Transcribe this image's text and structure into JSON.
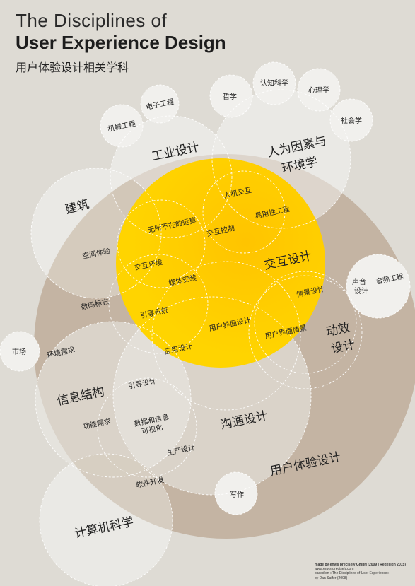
{
  "title": {
    "line1": "The Disciplines of",
    "line2": "User Experience Design",
    "line3": "用户体验设计相关学科"
  },
  "colors": {
    "background": "#dedbd4",
    "ux_circle": "#c4b4a3",
    "interaction_circle": "#ffd200",
    "interaction_highlight": "#ffc400",
    "light_circle": "#f0efec",
    "dashed_outline": "#ffffff"
  },
  "labels": {
    "disciplines": [
      "电子工程",
      "机械工程",
      "哲学",
      "认知科学",
      "心理学",
      "社会学",
      "工业设计",
      "人为因素与",
      "环境学",
      "建筑",
      "人机交互",
      "易用性工程",
      "无所不在的运算",
      "交互控制",
      "交互设计",
      "空间体验",
      "交互环境",
      "媒体安装",
      "数码标志",
      "引导系统",
      "用户界面设计",
      "情景设计",
      "声音",
      "设计",
      "音频工程",
      "动效",
      "设计",
      "市场",
      "环境需求",
      "应用设计",
      "用户界面情景",
      "信息结构",
      "引导设计",
      "沟通设计",
      "功能需求",
      "数据和信息",
      "可视化",
      "生产设计",
      "用户体验设计",
      "软件开发",
      "写作",
      "计算机科学"
    ]
  },
  "credits": {
    "line1": "made by envis precisely GmbH (2009 | Redesign 2015)",
    "line2": "www.envis-precisely.com",
    "line3": "based on »The Disciplines of User Experience«",
    "line4": "by Dan Saffer (2008)"
  }
}
